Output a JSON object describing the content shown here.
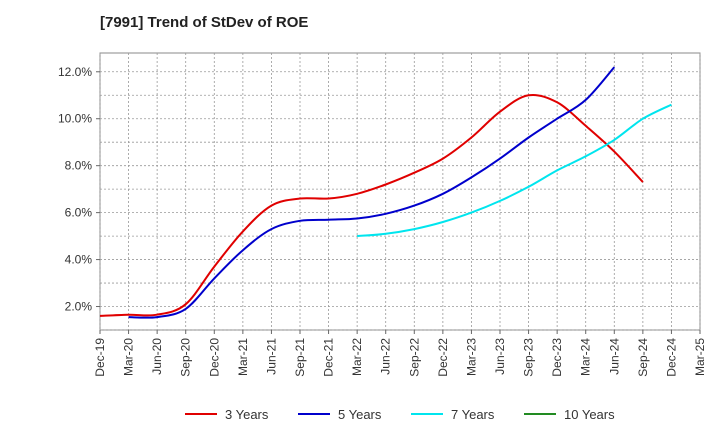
{
  "chart_data": {
    "type": "line",
    "title": "[7991]  Trend of StDev of ROE",
    "xlabel": "",
    "ylabel": "",
    "ylim": [
      1.0,
      12.8
    ],
    "grid": true,
    "legend_position": "bottom",
    "x_ticks": [
      "Dec-19",
      "Mar-20",
      "Jun-20",
      "Sep-20",
      "Dec-20",
      "Mar-21",
      "Jun-21",
      "Sep-21",
      "Dec-21",
      "Mar-22",
      "Jun-22",
      "Sep-22",
      "Dec-22",
      "Mar-23",
      "Jun-23",
      "Sep-23",
      "Dec-23",
      "Mar-24",
      "Jun-24",
      "Sep-24",
      "Dec-24",
      "Mar-25"
    ],
    "y_ticks": [
      {
        "value": 2.0,
        "label": "2.0%"
      },
      {
        "value": 4.0,
        "label": "4.0%"
      },
      {
        "value": 6.0,
        "label": "6.0%"
      },
      {
        "value": 8.0,
        "label": "8.0%"
      },
      {
        "value": 10.0,
        "label": "10.0%"
      },
      {
        "value": 12.0,
        "label": "12.0%"
      }
    ],
    "series": [
      {
        "name": "3 Years",
        "color": "#e00000",
        "values": [
          1.6,
          1.65,
          1.65,
          2.1,
          3.7,
          5.2,
          6.3,
          6.6,
          6.6,
          6.8,
          7.2,
          7.7,
          8.3,
          9.2,
          10.3,
          11.0,
          10.7,
          9.7,
          8.6,
          7.3
        ],
        "start_index": 0
      },
      {
        "name": "5 Years",
        "color": "#0000cc",
        "values": [
          1.55,
          1.55,
          1.9,
          3.2,
          4.4,
          5.3,
          5.65,
          5.7,
          5.75,
          5.95,
          6.3,
          6.8,
          7.5,
          8.3,
          9.2,
          10.0,
          10.8,
          12.2
        ],
        "start_index": 1
      },
      {
        "name": "7 Years",
        "color": "#00e5ee",
        "values": [
          5.0,
          5.1,
          5.3,
          5.6,
          6.0,
          6.5,
          7.1,
          7.8,
          8.4,
          9.1,
          10.0,
          10.6
        ],
        "start_index": 9
      },
      {
        "name": "10 Years",
        "color": "#228b22",
        "values": [],
        "start_index": 0
      }
    ]
  }
}
